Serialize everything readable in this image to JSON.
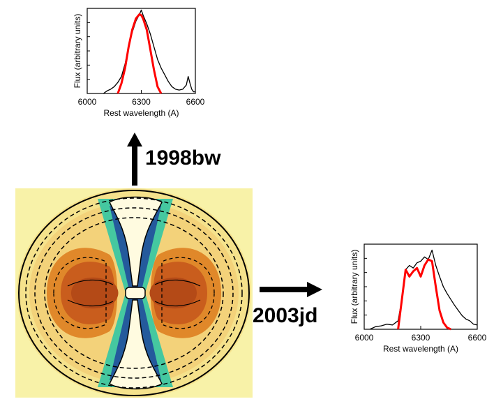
{
  "labels": {
    "top_event": "1998bw",
    "right_event": "2003jd"
  },
  "colors": {
    "observed": "#000000",
    "model": "#ff0000",
    "sim_background": "#f8f2a8",
    "sim_outer": "#f3d27a",
    "sim_mid": "#e0882a",
    "sim_core": "#b44a17",
    "sim_green": "#45c8a0",
    "sim_blue": "#1b3f9b"
  },
  "chart_data": [
    {
      "type": "line",
      "name": "spectrum-1998bw",
      "xlabel": "Rest wavelength (A)",
      "ylabel": "Flux (arbitrary units)",
      "xlim": [
        6000,
        6600
      ],
      "xticks": [
        6000,
        6300,
        6600
      ],
      "ylim": [
        0,
        1
      ],
      "series": [
        {
          "color": "#000000",
          "x": [
            6090,
            6110,
            6130,
            6150,
            6170,
            6190,
            6210,
            6230,
            6250,
            6270,
            6290,
            6300,
            6310,
            6330,
            6350,
            6370,
            6390,
            6410,
            6430,
            6450,
            6470,
            6490,
            6510,
            6530,
            6550,
            6560,
            6570,
            6580,
            6590,
            6600
          ],
          "y": [
            0.0,
            0.03,
            0.05,
            0.08,
            0.13,
            0.2,
            0.35,
            0.55,
            0.72,
            0.85,
            0.93,
            0.98,
            0.92,
            0.82,
            0.7,
            0.55,
            0.4,
            0.3,
            0.22,
            0.14,
            0.08,
            0.05,
            0.04,
            0.05,
            0.1,
            0.2,
            0.12,
            0.05,
            0.02,
            0.02
          ]
        },
        {
          "color": "#ff0000",
          "x": [
            6170,
            6190,
            6210,
            6230,
            6250,
            6270,
            6290,
            6300,
            6310,
            6330,
            6350,
            6370,
            6390,
            6410
          ],
          "y": [
            0.0,
            0.12,
            0.3,
            0.55,
            0.75,
            0.88,
            0.93,
            0.92,
            0.88,
            0.75,
            0.52,
            0.28,
            0.08,
            0.0
          ]
        }
      ]
    },
    {
      "type": "line",
      "name": "spectrum-2003jd",
      "xlabel": "Rest wavelength (A)",
      "ylabel": "Flux (arbitrary units)",
      "xlim": [
        6000,
        6600
      ],
      "xticks": [
        6000,
        6300,
        6600
      ],
      "ylim": [
        0,
        1
      ],
      "series": [
        {
          "color": "#000000",
          "x": [
            6030,
            6060,
            6090,
            6120,
            6150,
            6180,
            6200,
            6220,
            6240,
            6260,
            6280,
            6300,
            6320,
            6340,
            6360,
            6380,
            6400,
            6420,
            6440,
            6460,
            6480,
            6500,
            6520,
            6540,
            6560,
            6580,
            6600
          ],
          "y": [
            0.0,
            0.03,
            0.04,
            0.06,
            0.05,
            0.1,
            0.35,
            0.7,
            0.75,
            0.72,
            0.78,
            0.8,
            0.85,
            0.82,
            0.93,
            0.75,
            0.62,
            0.5,
            0.42,
            0.35,
            0.28,
            0.22,
            0.16,
            0.12,
            0.1,
            0.06,
            0.05
          ]
        },
        {
          "color": "#ff0000",
          "x": [
            6180,
            6200,
            6220,
            6240,
            6260,
            6280,
            6300,
            6320,
            6340,
            6360,
            6380,
            6400,
            6420,
            6440,
            6460
          ],
          "y": [
            0.0,
            0.35,
            0.7,
            0.62,
            0.68,
            0.72,
            0.62,
            0.75,
            0.82,
            0.8,
            0.5,
            0.22,
            0.08,
            0.02,
            0.0
          ]
        }
      ]
    }
  ]
}
